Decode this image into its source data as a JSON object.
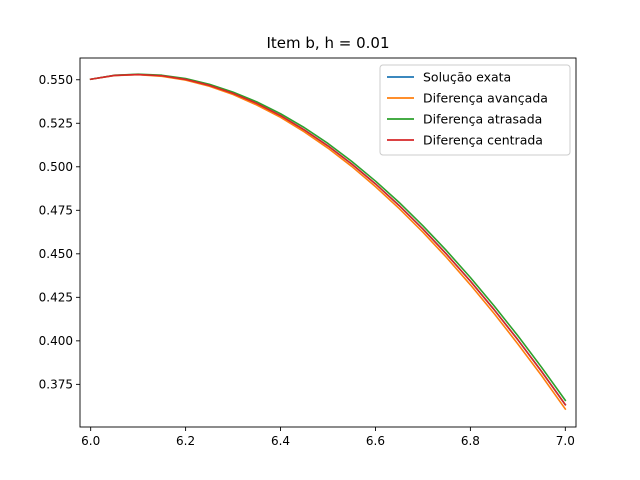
{
  "chart_data": {
    "type": "line",
    "title": "Item b, h = 0.01",
    "xlabel": "",
    "ylabel": "",
    "xlim": [
      5.9775,
      7.0225
    ],
    "ylim": [
      0.3505,
      0.5625
    ],
    "x_ticks": [
      6.0,
      6.2,
      6.4,
      6.6,
      6.8,
      7.0
    ],
    "x_tick_labels": [
      "6.0",
      "6.2",
      "6.4",
      "6.6",
      "6.8",
      "7.0"
    ],
    "y_ticks": [
      0.375,
      0.4,
      0.425,
      0.45,
      0.475,
      0.5,
      0.525,
      0.55
    ],
    "y_tick_labels": [
      "0.375",
      "0.400",
      "0.425",
      "0.450",
      "0.475",
      "0.500",
      "0.525",
      "0.550"
    ],
    "grid": false,
    "legend_position": "top-right",
    "x": [
      6.0,
      6.05,
      6.1,
      6.15,
      6.2,
      6.25,
      6.3,
      6.35,
      6.4,
      6.45,
      6.5,
      6.55,
      6.6,
      6.65,
      6.7,
      6.75,
      6.8,
      6.85,
      6.9,
      6.95,
      7.0
    ],
    "series": [
      {
        "name": "Solução exata",
        "color": "#1f77b4",
        "values": [
          0.5503,
          0.5525,
          0.553,
          0.5523,
          0.5502,
          0.5468,
          0.5422,
          0.5364,
          0.5294,
          0.5212,
          0.512,
          0.5016,
          0.4902,
          0.4777,
          0.4642,
          0.4497,
          0.4343,
          0.4179,
          0.4006,
          0.3824,
          0.3633
        ]
      },
      {
        "name": "Diferença avançada",
        "color": "#ff7f0e",
        "values": [
          0.5503,
          0.5524,
          0.5529,
          0.552,
          0.5498,
          0.5463,
          0.5415,
          0.5355,
          0.5284,
          0.5201,
          0.5107,
          0.5002,
          0.4886,
          0.476,
          0.4624,
          0.4478,
          0.4322,
          0.4157,
          0.3982,
          0.38,
          0.3608
        ]
      },
      {
        "name": "Diferença atrasada",
        "color": "#2ca02c",
        "values": [
          0.5503,
          0.5526,
          0.5532,
          0.5526,
          0.5507,
          0.5474,
          0.5429,
          0.5373,
          0.5305,
          0.5225,
          0.5134,
          0.5031,
          0.4918,
          0.4795,
          0.4661,
          0.4517,
          0.4364,
          0.4201,
          0.4029,
          0.3848,
          0.3658
        ]
      },
      {
        "name": "Diferença centrada",
        "color": "#d62728",
        "values": [
          0.5503,
          0.5525,
          0.553,
          0.5523,
          0.5502,
          0.5468,
          0.5422,
          0.5364,
          0.5294,
          0.5212,
          0.512,
          0.5016,
          0.4902,
          0.4777,
          0.4642,
          0.4497,
          0.4343,
          0.4179,
          0.4006,
          0.3824,
          0.3633
        ]
      }
    ]
  }
}
